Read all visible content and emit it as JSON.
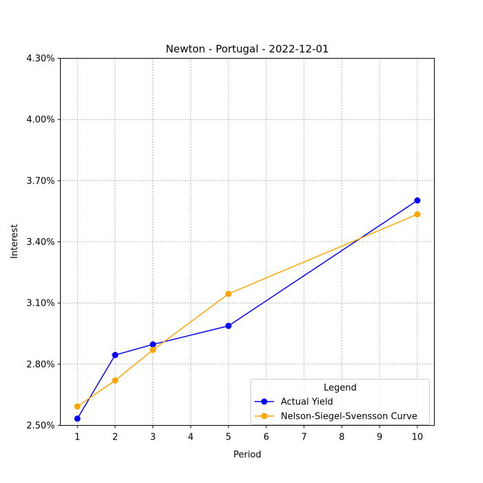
{
  "chart_data": {
    "type": "line",
    "title": "Newton - Portugal - 2022-12-01",
    "xlabel": "Period",
    "ylabel": "Interest",
    "xlim": [
      0.55,
      10.45
    ],
    "ylim": [
      2.5,
      4.3
    ],
    "xticks": [
      1,
      2,
      3,
      4,
      5,
      6,
      7,
      8,
      9,
      10
    ],
    "yticks": [
      "2.50%",
      "2.80%",
      "3.10%",
      "3.40%",
      "3.70%",
      "4.00%",
      "4.30%"
    ],
    "ytick_values": [
      2.5,
      2.8,
      3.1,
      3.4,
      3.7,
      4.0,
      4.3
    ],
    "grid": true,
    "legend": {
      "title": "Legend",
      "placement": "lower-right"
    },
    "series": [
      {
        "name": "Actual Yield",
        "color": "#0000ff",
        "x": [
          1,
          2,
          3,
          5,
          10
        ],
        "y": [
          2.533,
          2.845,
          2.897,
          2.988,
          3.603
        ]
      },
      {
        "name": "Nelson-Siegel-Svensson Curve",
        "color": "#ffa500",
        "x": [
          1,
          2,
          3,
          5,
          10
        ],
        "y": [
          2.593,
          2.72,
          2.87,
          3.145,
          3.535
        ]
      }
    ]
  }
}
